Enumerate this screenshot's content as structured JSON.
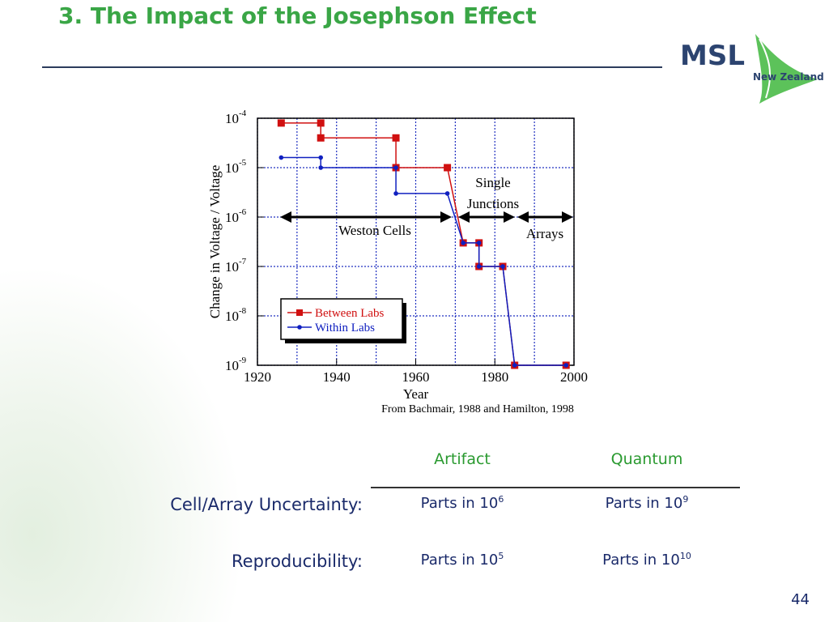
{
  "header": {
    "title": "3. The Impact of the Josephson Effect",
    "logo": {
      "name": "MSL",
      "subtitle": "New Zealand"
    }
  },
  "chart_data": {
    "type": "line",
    "xlabel": "Year",
    "ylabel": "Change in Voltage / Voltage",
    "source": "From Bachmair, 1988 and Hamilton, 1998",
    "log_y": true,
    "grid": true,
    "xlim": [
      1920,
      2000
    ],
    "xticks": [
      1920,
      1940,
      1960,
      1980,
      2000
    ],
    "xgrid": [
      1920,
      1930,
      1940,
      1950,
      1960,
      1970,
      1980,
      1990,
      2000
    ],
    "ylim": [
      1e-09,
      0.0001
    ],
    "yticks": [
      {
        "value": 1e-09,
        "label": "10",
        "sup": "-9"
      },
      {
        "value": 1e-08,
        "label": "10",
        "sup": "-8"
      },
      {
        "value": 1e-07,
        "label": "10",
        "sup": "-7"
      },
      {
        "value": 1e-06,
        "label": "10",
        "sup": "-6"
      },
      {
        "value": 1e-05,
        "label": "10",
        "sup": "-5"
      },
      {
        "value": 0.0001,
        "label": "10",
        "sup": "-4"
      }
    ],
    "series": [
      {
        "name": "Between Labs",
        "color": "#d01010",
        "marker": "square",
        "x": [
          1926,
          1936,
          1936,
          1955,
          1955,
          1968,
          1972,
          1976,
          1976,
          1982,
          1985,
          1998
        ],
        "values": [
          8e-05,
          8e-05,
          4e-05,
          4e-05,
          1e-05,
          1e-05,
          3e-07,
          3e-07,
          1e-07,
          1e-07,
          1e-09,
          1e-09
        ]
      },
      {
        "name": "Within Labs",
        "color": "#1020c0",
        "marker": "circle",
        "x": [
          1926,
          1936,
          1936,
          1955,
          1955,
          1968,
          1972,
          1976,
          1976,
          1982,
          1985,
          1998
        ],
        "values": [
          1.6e-05,
          1.6e-05,
          1e-05,
          1e-05,
          3e-06,
          3e-06,
          3e-07,
          3e-07,
          1e-07,
          1e-07,
          1e-09,
          1e-09
        ]
      }
    ],
    "annotations": [
      "Weston Cells",
      "Single",
      "Junctions",
      "Arrays"
    ]
  },
  "table": {
    "columns": [
      "Artifact",
      "Quantum"
    ],
    "rows": [
      {
        "label": "Cell/Array Uncertainty:",
        "cells": [
          {
            "text": "Parts in 10",
            "sup": "6"
          },
          {
            "text": "Parts in 10",
            "sup": "9"
          }
        ]
      },
      {
        "label": "Reproducibility:",
        "cells": [
          {
            "text": "Parts in 10",
            "sup": "5"
          },
          {
            "text": "Parts in 10",
            "sup": "10"
          }
        ]
      }
    ]
  },
  "page_number": "44"
}
